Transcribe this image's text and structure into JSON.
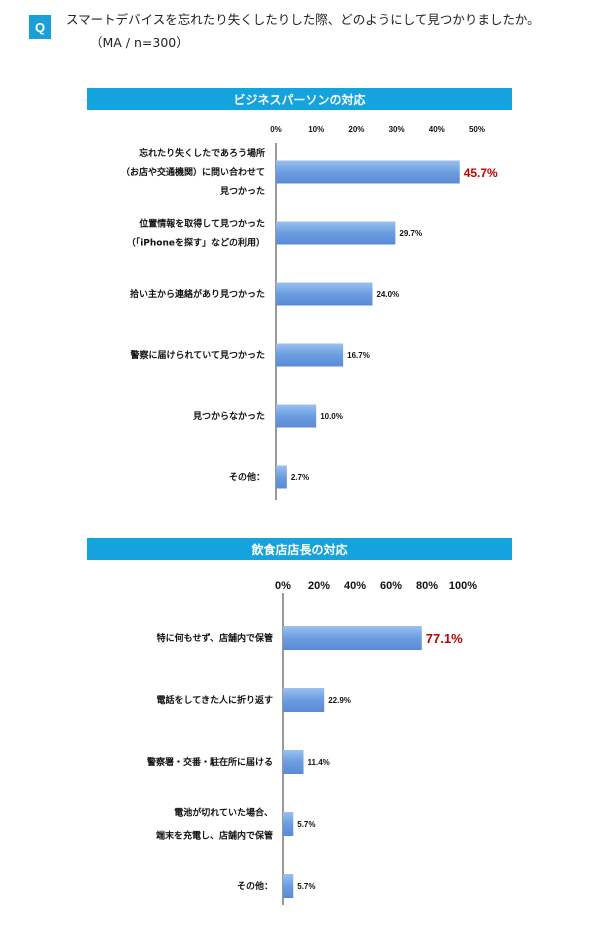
{
  "question": {
    "badge": "Q",
    "text": "スマートデバイスを忘れたり失くしたりした際、どのようにして見つかりましたか。",
    "sub": "（MA / n=300）"
  },
  "accent_color": "#15a3dd",
  "bar_color": "#6b9de0",
  "highlight_color": "#c00000",
  "chart_data": [
    {
      "type": "bar",
      "orientation": "horizontal",
      "title": "ビジネスパーソンの対応",
      "xlim": [
        0,
        50
      ],
      "ticks": [
        "0%",
        "10%",
        "20%",
        "30%",
        "40%",
        "50%"
      ],
      "categories": [
        [
          "忘れたり失くしたであろう場所",
          "（お店や交通機関）に問い合わせて",
          "見つかった"
        ],
        [
          "位置情報を取得して見つかった",
          "（「iPhoneを探す」などの利用）"
        ],
        [
          "拾い主から連絡があり見つかった"
        ],
        [
          "警察に届けられていて見つかった"
        ],
        [
          "見つからなかった"
        ],
        [
          "その他："
        ]
      ],
      "values": [
        45.7,
        29.7,
        24.0,
        16.7,
        10.0,
        2.7
      ],
      "value_labels": [
        "45.7%",
        "29.7%",
        "24.0%",
        "16.7%",
        "10.0%",
        "2.7%"
      ]
    },
    {
      "type": "bar",
      "orientation": "horizontal",
      "title": "飲食店店長の対応",
      "xlim": [
        0,
        100
      ],
      "ticks": [
        "0%",
        "20%",
        "40%",
        "60%",
        "80%",
        "100%"
      ],
      "categories": [
        [
          "特に何もせず、店舗内で保管"
        ],
        [
          "電話をしてきた人に折り返す"
        ],
        [
          "警察署・交番・駐在所に届ける"
        ],
        [
          "電池が切れていた場合、",
          "端末を充電し、店舗内で保管"
        ],
        [
          "その他："
        ]
      ],
      "values": [
        77.1,
        22.9,
        11.4,
        5.7,
        5.7
      ],
      "value_labels": [
        "77.1%",
        "22.9%",
        "11.4%",
        "5.7%",
        "5.7%"
      ]
    }
  ]
}
